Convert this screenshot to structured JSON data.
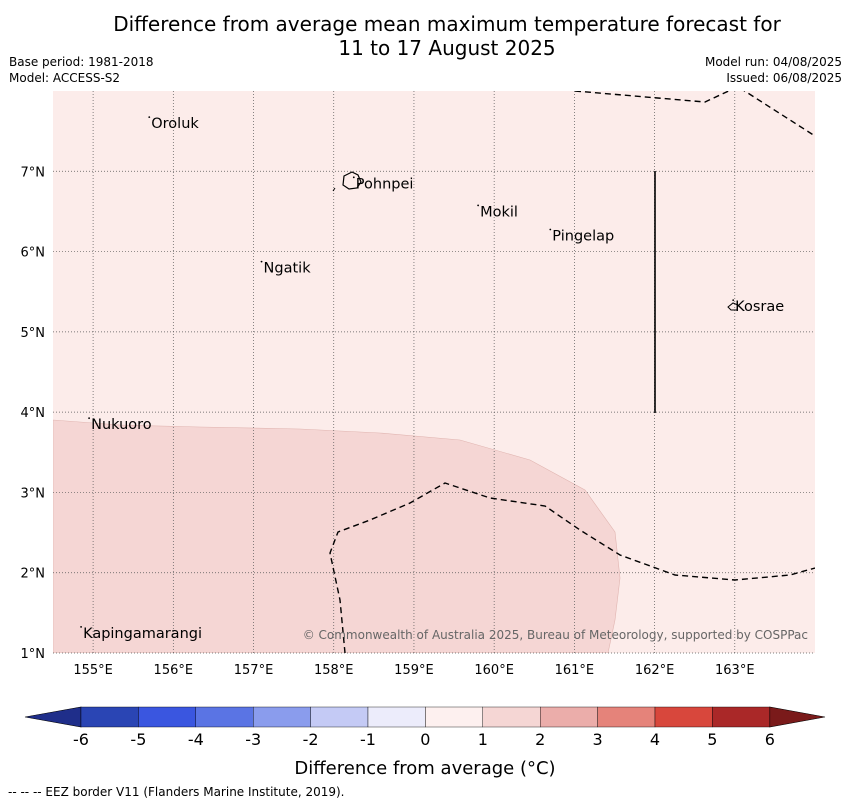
{
  "title_line1": "Difference from average mean maximum temperature forecast for",
  "title_line2": "11 to 17 August 2025",
  "meta_left": {
    "base_period": "Base period: 1981-2018",
    "model": "Model: ACCESS-S2"
  },
  "meta_right": {
    "model_run": "Model run: 04/08/2025",
    "issued": "Issued: 06/08/2025"
  },
  "map": {
    "lon_range": [
      154.5,
      164.0
    ],
    "lat_range": [
      1.0,
      8.0
    ],
    "lon_ticks": [
      "155°E",
      "156°E",
      "157°E",
      "158°E",
      "159°E",
      "160°E",
      "161°E",
      "162°E",
      "163°E"
    ],
    "lat_ticks": [
      "1°N",
      "2°N",
      "3°N",
      "4°N",
      "5°N",
      "6°N",
      "7°N"
    ],
    "places": [
      {
        "name": "Oroluk",
        "lon": 155.7,
        "lat": 7.6
      },
      {
        "name": "Pohnpei",
        "lon": 158.25,
        "lat": 6.85
      },
      {
        "name": "Mokil",
        "lon": 159.8,
        "lat": 6.5
      },
      {
        "name": "Pingelap",
        "lon": 160.7,
        "lat": 6.2
      },
      {
        "name": "Ngatik",
        "lon": 157.1,
        "lat": 5.8
      },
      {
        "name": "Kosrae",
        "lon": 162.98,
        "lat": 5.32
      },
      {
        "name": "Nukuoro",
        "lon": 154.95,
        "lat": 3.85
      },
      {
        "name": "Kapingamarangi",
        "lon": 154.85,
        "lat": 1.25
      }
    ],
    "anomaly_fill_background": "0 to 1",
    "anomaly_fill_south": "1 to 2",
    "copyright": "© Commonwealth of Australia 2025, Bureau of Meteorology, supported by COSPPac"
  },
  "colorbar": {
    "ticks": [
      "-6",
      "-5",
      "-4",
      "-3",
      "-2",
      "-1",
      "0",
      "1",
      "2",
      "3",
      "4",
      "5",
      "6"
    ],
    "colors": [
      "#1f2e8a",
      "#2a45b4",
      "#3a56e0",
      "#5a74e4",
      "#8a9ced",
      "#c4caf5",
      "#ececfb",
      "#fdf0ef",
      "#f5d6d4",
      "#ebadaa",
      "#e5837a",
      "#d8473c",
      "#aa2828",
      "#7a1a1a"
    ],
    "label": "Difference from average (°C)"
  },
  "footnote": "--  --  -- EEZ border V11 (Flanders Marine Institute, 2019)."
}
